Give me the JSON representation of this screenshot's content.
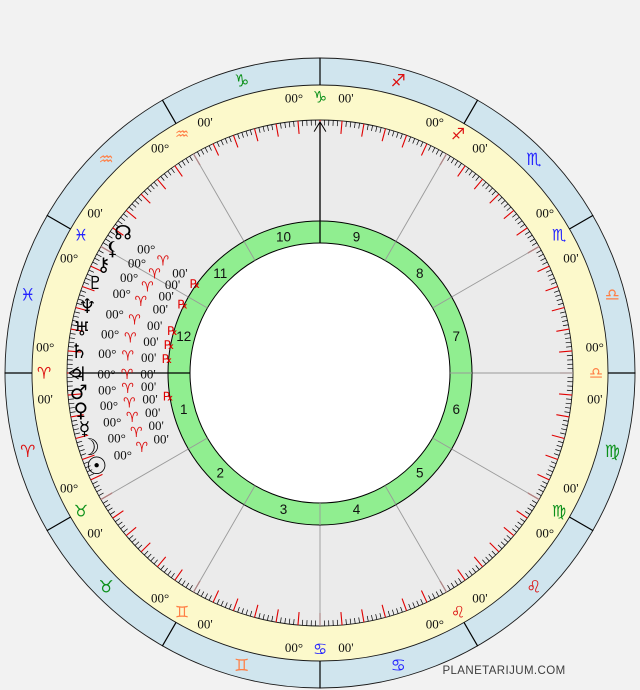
{
  "watermark": "PLANETARIJUM.COM",
  "chart": {
    "degree_label": "00°",
    "minute_label": "00'",
    "retrograde_label": "℞",
    "element_colors": {
      "fire": "#dc1010",
      "earth": "#0a9018",
      "air": "#ff7f45",
      "water": "#2424ff"
    },
    "planet_sign_color": "#dc1010",
    "signs": [
      {
        "name": "aries",
        "glyph": "♈",
        "element": "fire",
        "cusp_angle": 180
      },
      {
        "name": "taurus",
        "glyph": "♉",
        "element": "earth",
        "cusp_angle": 210
      },
      {
        "name": "gemini",
        "glyph": "♊",
        "element": "air",
        "cusp_angle": 240
      },
      {
        "name": "cancer",
        "glyph": "♋",
        "element": "water",
        "cusp_angle": 270
      },
      {
        "name": "leo",
        "glyph": "♌",
        "element": "fire",
        "cusp_angle": 300
      },
      {
        "name": "virgo",
        "glyph": "♍",
        "element": "earth",
        "cusp_angle": 330
      },
      {
        "name": "libra",
        "glyph": "♎",
        "element": "air",
        "cusp_angle": 0
      },
      {
        "name": "scorpio",
        "glyph": "♏",
        "element": "water",
        "cusp_angle": 30
      },
      {
        "name": "sagittarius",
        "glyph": "♐",
        "element": "fire",
        "cusp_angle": 60
      },
      {
        "name": "capricorn",
        "glyph": "♑",
        "element": "earth",
        "cusp_angle": 90
      },
      {
        "name": "aquarius",
        "glyph": "♒",
        "element": "air",
        "cusp_angle": 120
      },
      {
        "name": "pisces",
        "glyph": "♓",
        "element": "water",
        "cusp_angle": 150
      }
    ],
    "houses": [
      {
        "number": "1",
        "cusp_angle": 180
      },
      {
        "number": "2",
        "cusp_angle": 210
      },
      {
        "number": "3",
        "cusp_angle": 240
      },
      {
        "number": "4",
        "cusp_angle": 270
      },
      {
        "number": "5",
        "cusp_angle": 300
      },
      {
        "number": "6",
        "cusp_angle": 330
      },
      {
        "number": "7",
        "cusp_angle": 0
      },
      {
        "number": "8",
        "cusp_angle": 30
      },
      {
        "number": "9",
        "cusp_angle": 60
      },
      {
        "number": "10",
        "cusp_angle": 90
      },
      {
        "number": "11",
        "cusp_angle": 120
      },
      {
        "number": "12",
        "cusp_angle": 150
      }
    ],
    "planets": [
      {
        "name": "true-node",
        "glyph": "☊",
        "angle": 144.5,
        "sign_glyph": "♈",
        "retrograde": true,
        "size": 20
      },
      {
        "name": "lilith",
        "glyph": "⚸",
        "angle": 149.0,
        "sign_glyph": "♈",
        "retrograde": false,
        "size": 19
      },
      {
        "name": "chiron",
        "glyph": "⚷",
        "angle": 153.4,
        "sign_glyph": "♈",
        "retrograde": true,
        "size": 19
      },
      {
        "name": "pluto",
        "glyph": "♇",
        "angle": 158.2,
        "sign_glyph": "♈",
        "retrograde": false,
        "size": 18
      },
      {
        "name": "neptune",
        "glyph": "♆",
        "angle": 164.0,
        "sign_glyph": "♈",
        "retrograde": true,
        "size": 20
      },
      {
        "name": "uranus",
        "glyph": "♅",
        "angle": 169.5,
        "sign_glyph": "♈",
        "retrograde": true,
        "size": 19
      },
      {
        "name": "saturn",
        "glyph": "♄",
        "angle": 174.8,
        "sign_glyph": "♈",
        "retrograde": true,
        "size": 20
      },
      {
        "name": "jupiter",
        "glyph": "♃",
        "angle": 180.3,
        "sign_glyph": "♈",
        "retrograde": false,
        "size": 20
      },
      {
        "name": "mars",
        "glyph": "♂",
        "angle": 184.6,
        "sign_glyph": "♈",
        "retrograde": false,
        "size": 20
      },
      {
        "name": "venus",
        "glyph": "♀",
        "angle": 188.8,
        "sign_glyph": "♈",
        "retrograde": true,
        "size": 20
      },
      {
        "name": "mercury",
        "glyph": "☿",
        "angle": 193.3,
        "sign_glyph": "♈",
        "retrograde": false,
        "size": 19
      },
      {
        "name": "moon",
        "glyph": "☽",
        "angle": 197.8,
        "sign_glyph": "♈",
        "retrograde": false,
        "size": 23
      },
      {
        "name": "sun",
        "glyph": "☉",
        "angle": 202.6,
        "sign_glyph": "♈",
        "retrograde": false,
        "size": 24
      }
    ],
    "rings": {
      "outer_zodiac_fill": "#d0e5ee",
      "degree_ring_fill": "#fcf9cb",
      "inner_zone_fill": "#ebebeb",
      "house_ring_fill": "#90ee90",
      "center_fill": "#ffffff",
      "tick_red": "#e00000",
      "spoke_gray": "#9a9a9a"
    }
  }
}
